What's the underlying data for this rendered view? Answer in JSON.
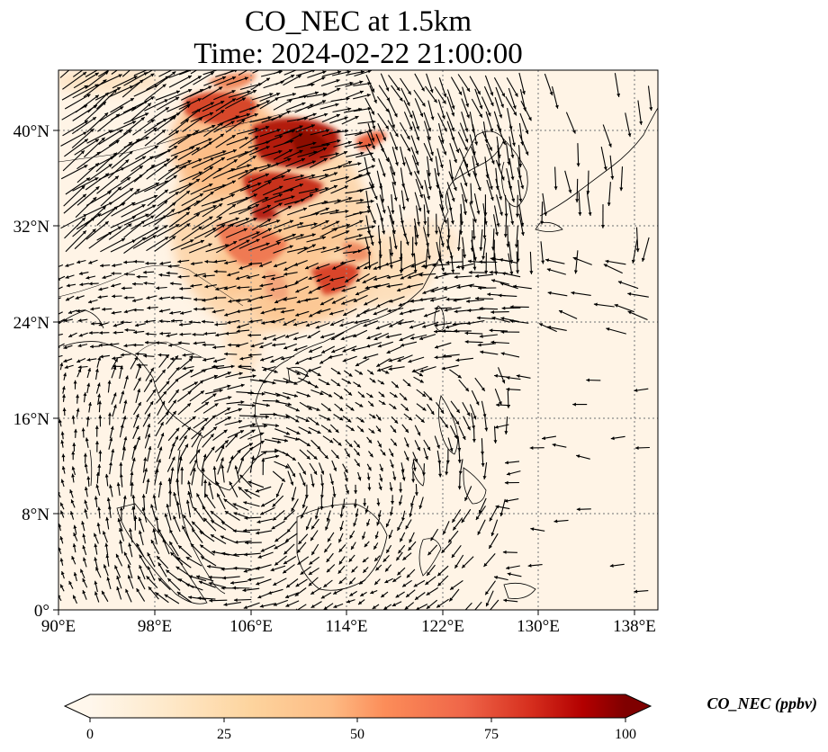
{
  "title": {
    "line1": "CO_NEC at 1.5km",
    "line2": "Time: 2024-02-22 21:00:00"
  },
  "map": {
    "variable": "CO_NEC",
    "height": "1.5km",
    "time": "2024-02-22 21:00:00",
    "projection": "PlateCarree",
    "lon_range": [
      90,
      140
    ],
    "lat_range": [
      0,
      45
    ],
    "x_ticks": [
      "90°E",
      "98°E",
      "106°E",
      "114°E",
      "122°E",
      "130°E",
      "138°E"
    ],
    "y_ticks": [
      "0°",
      "8°N",
      "16°N",
      "24°N",
      "32°N",
      "40°N"
    ],
    "gridlines": "dotted",
    "wind_vectors": true
  },
  "colorbar": {
    "label": "CO_NEC (ppbv)",
    "ticks": [
      "0",
      "25",
      "50",
      "75",
      "100"
    ],
    "range": [
      0,
      100
    ],
    "colormap": "OrRd",
    "extend": "both"
  },
  "colors": {
    "low": "#fff7ec",
    "mid": "#fc8d59",
    "high": "#7f0000",
    "arrow": "#000000",
    "coast": "#000000",
    "grid": "#8a8a8a"
  }
}
